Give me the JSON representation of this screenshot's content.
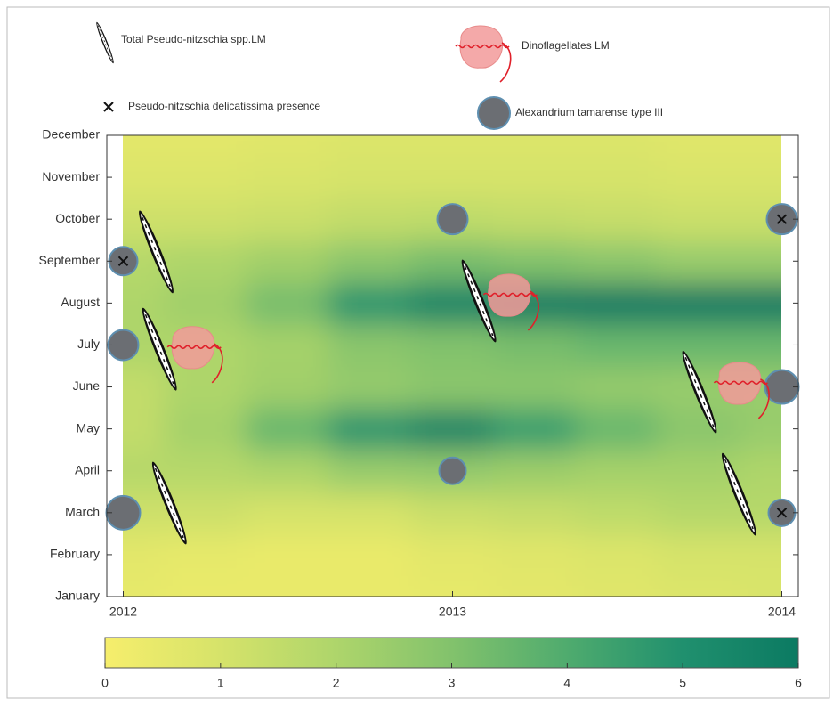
{
  "chart_data": {
    "type": "contour",
    "grid_x": [
      2012,
      2012.25,
      2012.5,
      2012.75,
      2013,
      2013.25,
      2013.5,
      2013.75,
      2014
    ],
    "grid_y": [
      1,
      2,
      3,
      4,
      5,
      6,
      7,
      8,
      9,
      10,
      11,
      12
    ],
    "z": [
      [
        0.5,
        0.4,
        0.4,
        0.4,
        0.5,
        0.6,
        0.7,
        0.8,
        0.9
      ],
      [
        0.6,
        0.5,
        0.4,
        0.4,
        0.6,
        0.7,
        0.8,
        1.0,
        1.0
      ],
      [
        1.2,
        1.2,
        1.0,
        1.0,
        1.3,
        1.4,
        1.6,
        1.8,
        1.8
      ],
      [
        1.8,
        1.8,
        2.0,
        2.5,
        2.6,
        2.4,
        2.2,
        2.2,
        2.0
      ],
      [
        1.5,
        2.2,
        3.5,
        4.8,
        5.5,
        4.5,
        3.5,
        2.8,
        2.5
      ],
      [
        1.5,
        2.0,
        2.3,
        2.6,
        2.8,
        2.8,
        2.6,
        2.5,
        2.5
      ],
      [
        2.0,
        2.0,
        2.2,
        2.8,
        3.0,
        3.2,
        3.5,
        3.5,
        3.5
      ],
      [
        2.0,
        2.3,
        3.2,
        4.8,
        5.5,
        5.8,
        5.9,
        5.9,
        5.9
      ],
      [
        1.8,
        2.0,
        2.3,
        2.8,
        3.2,
        3.0,
        2.8,
        2.5,
        2.5
      ],
      [
        1.2,
        1.2,
        1.3,
        1.5,
        1.6,
        1.5,
        1.4,
        1.3,
        1.3
      ],
      [
        0.8,
        0.8,
        0.9,
        1.0,
        1.0,
        1.0,
        1.0,
        0.9,
        0.9
      ],
      [
        0.6,
        0.6,
        0.7,
        0.8,
        0.8,
        0.8,
        0.8,
        0.7,
        0.7
      ]
    ],
    "xlim": [
      2011.95,
      2014.05
    ],
    "ylim": [
      1,
      12
    ],
    "xticks": [
      2012,
      2013,
      2014
    ],
    "yticks": [
      {
        "value": 1,
        "label": "January"
      },
      {
        "value": 2,
        "label": "February"
      },
      {
        "value": 3,
        "label": "March"
      },
      {
        "value": 4,
        "label": "April"
      },
      {
        "value": 5,
        "label": "May"
      },
      {
        "value": 6,
        "label": "June"
      },
      {
        "value": 7,
        "label": "July"
      },
      {
        "value": 8,
        "label": "August"
      },
      {
        "value": 9,
        "label": "September"
      },
      {
        "value": 10,
        "label": "October"
      },
      {
        "value": 11,
        "label": "November"
      },
      {
        "value": 12,
        "label": "December"
      }
    ],
    "clim": [
      0,
      6
    ],
    "cticks": [
      0,
      1,
      2,
      3,
      4,
      5,
      6
    ],
    "colorscale": [
      "#f6ee6c",
      "#d6e36a",
      "#aed56b",
      "#82c26c",
      "#4fab6e",
      "#20906e",
      "#0b7a62"
    ],
    "series": [
      {
        "name": "Total Pseudo-nitzschia spp.LM",
        "marker": "diatom",
        "color": "#111111",
        "x": [
          2012.1,
          2012.11,
          2012.14,
          2013.08,
          2013.75,
          2013.87
        ],
        "y": [
          9.22,
          6.9,
          3.23,
          8.05,
          5.88,
          3.44
        ]
      },
      {
        "name": "Dinoflagellates LM",
        "marker": "dinoflagellate",
        "color": "#f29a9a",
        "x": [
          2012.21,
          2013.17,
          2013.87
        ],
        "y": [
          6.95,
          8.2,
          6.1
        ]
      },
      {
        "name": "Pseudo-nitzschia delicatissima presence",
        "marker": "cross",
        "color": "#111111",
        "x": [
          2012,
          2014,
          2014
        ],
        "y": [
          9,
          10,
          3
        ]
      },
      {
        "name": "Alexandrium tamarense type III",
        "marker": "circle",
        "color": "#6b6e73",
        "x": [
          2012,
          2012,
          2012,
          2013,
          2013,
          2014,
          2014,
          2014
        ],
        "y": [
          9,
          7,
          3,
          10,
          4,
          10,
          6,
          3
        ],
        "sizes": [
          16,
          17,
          19,
          17,
          15,
          17,
          19,
          15
        ]
      }
    ]
  }
}
